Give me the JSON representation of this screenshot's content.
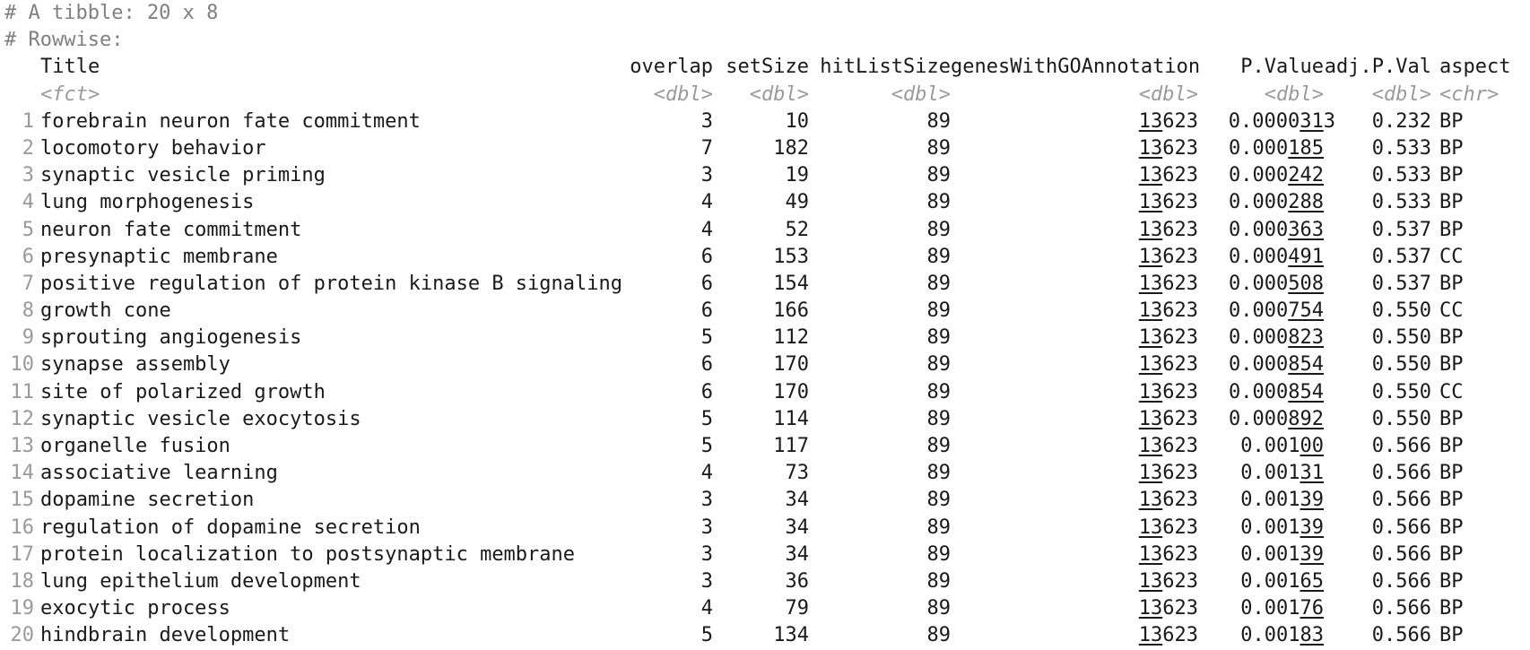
{
  "header": {
    "tibble_line": "# A tibble: 20 x 8",
    "rowwise_line": "# Rowwise:"
  },
  "columns": [
    {
      "name": "Title",
      "type": "<fct>"
    },
    {
      "name": "overlap",
      "type": "<dbl>"
    },
    {
      "name": "setSize",
      "type": "<dbl>"
    },
    {
      "name": "hitListSize",
      "type": "<dbl>"
    },
    {
      "name": "genesWithGOAnnotation",
      "type": "<dbl>"
    },
    {
      "name": "P.Value",
      "type": "<dbl>"
    },
    {
      "name": "adj.P.Val",
      "type": "<dbl>"
    },
    {
      "name": "aspect",
      "type": "<chr>"
    }
  ],
  "rows": [
    {
      "n": "1",
      "title": "forebrain neuron fate commitment",
      "overlap": "3",
      "setSize": "10",
      "hit": "89",
      "genes_u": "13",
      "genes_r": "623",
      "p_pre": "0.0000",
      "p_u": "31",
      "p_post": "3",
      "adj": "0.232",
      "aspect": "BP"
    },
    {
      "n": "2",
      "title": "locomotory behavior",
      "overlap": "7",
      "setSize": "182",
      "hit": "89",
      "genes_u": "13",
      "genes_r": "623",
      "p_pre": "0.000",
      "p_u": "185",
      "p_post": "",
      "adj": "0.533",
      "aspect": "BP"
    },
    {
      "n": "3",
      "title": "synaptic vesicle priming",
      "overlap": "3",
      "setSize": "19",
      "hit": "89",
      "genes_u": "13",
      "genes_r": "623",
      "p_pre": "0.000",
      "p_u": "242",
      "p_post": "",
      "adj": "0.533",
      "aspect": "BP"
    },
    {
      "n": "4",
      "title": "lung morphogenesis",
      "overlap": "4",
      "setSize": "49",
      "hit": "89",
      "genes_u": "13",
      "genes_r": "623",
      "p_pre": "0.000",
      "p_u": "288",
      "p_post": "",
      "adj": "0.533",
      "aspect": "BP"
    },
    {
      "n": "5",
      "title": "neuron fate commitment",
      "overlap": "4",
      "setSize": "52",
      "hit": "89",
      "genes_u": "13",
      "genes_r": "623",
      "p_pre": "0.000",
      "p_u": "363",
      "p_post": "",
      "adj": "0.537",
      "aspect": "BP"
    },
    {
      "n": "6",
      "title": "presynaptic membrane",
      "overlap": "6",
      "setSize": "153",
      "hit": "89",
      "genes_u": "13",
      "genes_r": "623",
      "p_pre": "0.000",
      "p_u": "491",
      "p_post": "",
      "adj": "0.537",
      "aspect": "CC"
    },
    {
      "n": "7",
      "title": "positive regulation of protein kinase B signaling",
      "overlap": "6",
      "setSize": "154",
      "hit": "89",
      "genes_u": "13",
      "genes_r": "623",
      "p_pre": "0.000",
      "p_u": "508",
      "p_post": "",
      "adj": "0.537",
      "aspect": "BP"
    },
    {
      "n": "8",
      "title": "growth cone",
      "overlap": "6",
      "setSize": "166",
      "hit": "89",
      "genes_u": "13",
      "genes_r": "623",
      "p_pre": "0.000",
      "p_u": "754",
      "p_post": "",
      "adj": "0.550",
      "aspect": "CC"
    },
    {
      "n": "9",
      "title": "sprouting angiogenesis",
      "overlap": "5",
      "setSize": "112",
      "hit": "89",
      "genes_u": "13",
      "genes_r": "623",
      "p_pre": "0.000",
      "p_u": "823",
      "p_post": "",
      "adj": "0.550",
      "aspect": "BP"
    },
    {
      "n": "10",
      "title": "synapse assembly",
      "overlap": "6",
      "setSize": "170",
      "hit": "89",
      "genes_u": "13",
      "genes_r": "623",
      "p_pre": "0.000",
      "p_u": "854",
      "p_post": "",
      "adj": "0.550",
      "aspect": "BP"
    },
    {
      "n": "11",
      "title": "site of polarized growth",
      "overlap": "6",
      "setSize": "170",
      "hit": "89",
      "genes_u": "13",
      "genes_r": "623",
      "p_pre": "0.000",
      "p_u": "854",
      "p_post": "",
      "adj": "0.550",
      "aspect": "CC"
    },
    {
      "n": "12",
      "title": "synaptic vesicle exocytosis",
      "overlap": "5",
      "setSize": "114",
      "hit": "89",
      "genes_u": "13",
      "genes_r": "623",
      "p_pre": "0.000",
      "p_u": "892",
      "p_post": "",
      "adj": "0.550",
      "aspect": "BP"
    },
    {
      "n": "13",
      "title": "organelle fusion",
      "overlap": "5",
      "setSize": "117",
      "hit": "89",
      "genes_u": "13",
      "genes_r": "623",
      "p_pre": "0.001",
      "p_u": "00",
      "p_post": "",
      "adj": "0.566",
      "aspect": "BP"
    },
    {
      "n": "14",
      "title": "associative learning",
      "overlap": "4",
      "setSize": "73",
      "hit": "89",
      "genes_u": "13",
      "genes_r": "623",
      "p_pre": "0.001",
      "p_u": "31",
      "p_post": "",
      "adj": "0.566",
      "aspect": "BP"
    },
    {
      "n": "15",
      "title": "dopamine secretion",
      "overlap": "3",
      "setSize": "34",
      "hit": "89",
      "genes_u": "13",
      "genes_r": "623",
      "p_pre": "0.001",
      "p_u": "39",
      "p_post": "",
      "adj": "0.566",
      "aspect": "BP"
    },
    {
      "n": "16",
      "title": "regulation of dopamine secretion",
      "overlap": "3",
      "setSize": "34",
      "hit": "89",
      "genes_u": "13",
      "genes_r": "623",
      "p_pre": "0.001",
      "p_u": "39",
      "p_post": "",
      "adj": "0.566",
      "aspect": "BP"
    },
    {
      "n": "17",
      "title": "protein localization to postsynaptic membrane",
      "overlap": "3",
      "setSize": "34",
      "hit": "89",
      "genes_u": "13",
      "genes_r": "623",
      "p_pre": "0.001",
      "p_u": "39",
      "p_post": "",
      "adj": "0.566",
      "aspect": "BP"
    },
    {
      "n": "18",
      "title": "lung epithelium development",
      "overlap": "3",
      "setSize": "36",
      "hit": "89",
      "genes_u": "13",
      "genes_r": "623",
      "p_pre": "0.001",
      "p_u": "65",
      "p_post": "",
      "adj": "0.566",
      "aspect": "BP"
    },
    {
      "n": "19",
      "title": "exocytic process",
      "overlap": "4",
      "setSize": "79",
      "hit": "89",
      "genes_u": "13",
      "genes_r": "623",
      "p_pre": "0.001",
      "p_u": "76",
      "p_post": "",
      "adj": "0.566",
      "aspect": "BP"
    },
    {
      "n": "20",
      "title": "hindbrain development",
      "overlap": "5",
      "setSize": "134",
      "hit": "89",
      "genes_u": "13",
      "genes_r": "623",
      "p_pre": "0.001",
      "p_u": "83",
      "p_post": "",
      "adj": "0.566",
      "aspect": "BP"
    }
  ]
}
